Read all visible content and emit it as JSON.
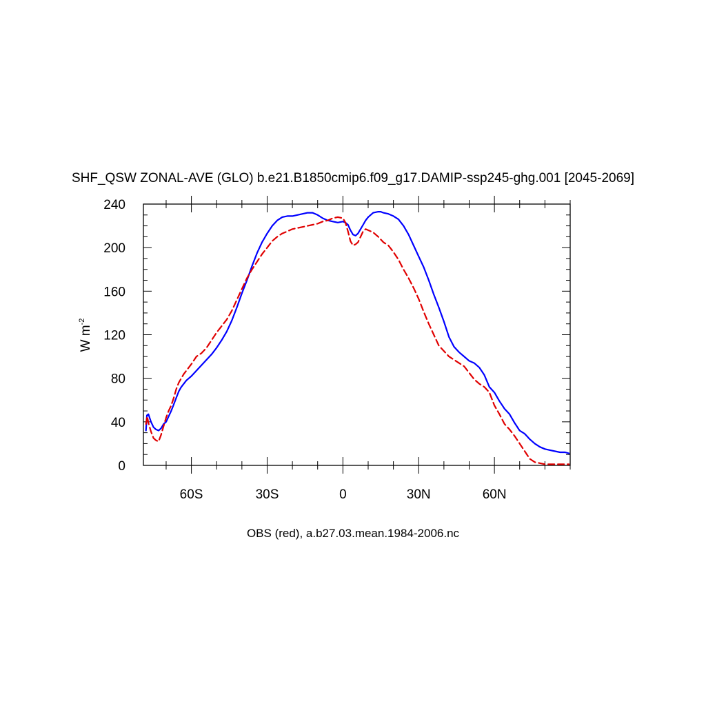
{
  "chart_data": {
    "type": "line",
    "title": "SHF_QSW ZONAL-AVE (GLO) b.e21.B1850cmip6.f09_g17.DAMIP-ssp245-ghg.001 [2045-2069]",
    "ylabel_main": "W m",
    "ylabel_exponent": "-2",
    "caption": "OBS (red), a.b27.03.mean.1984-2006.nc",
    "xlim": [
      -79,
      90
    ],
    "ylim": [
      0,
      240
    ],
    "grid": false,
    "x_ticks": [
      {
        "value": -60,
        "label": "60S"
      },
      {
        "value": -30,
        "label": "30S"
      },
      {
        "value": 0,
        "label": "0"
      },
      {
        "value": 30,
        "label": "30N"
      },
      {
        "value": 60,
        "label": "60N"
      }
    ],
    "y_ticks": [
      {
        "value": 0,
        "label": "0"
      },
      {
        "value": 40,
        "label": "40"
      },
      {
        "value": 80,
        "label": "80"
      },
      {
        "value": 120,
        "label": "120"
      },
      {
        "value": 160,
        "label": "160"
      },
      {
        "value": 200,
        "label": "200"
      },
      {
        "value": 240,
        "label": "240"
      }
    ],
    "series": [
      {
        "color": "#0000ff",
        "style": "solid",
        "x": [
          -78,
          -77.6,
          -77,
          -76,
          -75,
          -74,
          -73,
          -72,
          -71,
          -70,
          -69,
          -68,
          -67,
          -66,
          -65,
          -64,
          -63,
          -62,
          -61,
          -60,
          -58,
          -56,
          -54,
          -52,
          -50,
          -48,
          -46,
          -44,
          -42,
          -40,
          -38,
          -36,
          -34,
          -32,
          -30,
          -28,
          -26,
          -24,
          -22,
          -20,
          -18,
          -16,
          -14,
          -12,
          -10,
          -8,
          -6,
          -4,
          -2,
          0,
          1,
          2,
          3,
          4,
          5,
          6,
          7,
          8,
          9,
          10,
          12,
          14,
          15,
          16,
          18,
          20,
          22,
          24,
          26,
          28,
          30,
          32,
          34,
          36,
          38,
          40,
          42,
          44,
          46,
          48,
          50,
          52,
          54,
          56,
          58,
          60,
          62,
          64,
          66,
          68,
          70,
          72,
          74,
          76,
          78,
          80,
          82,
          84,
          86,
          88,
          89.5
        ],
        "values": [
          32,
          46,
          47,
          40,
          35,
          33,
          32,
          34,
          38,
          40,
          45,
          50,
          56,
          62,
          68,
          72,
          75,
          78,
          80,
          82,
          87,
          92,
          97,
          102,
          108,
          115,
          123,
          133,
          145,
          158,
          170,
          183,
          195,
          205,
          213,
          220,
          225,
          228,
          229,
          229,
          230,
          231,
          232,
          232,
          230,
          227,
          225,
          224,
          223,
          224,
          223,
          221,
          216,
          212,
          211,
          213,
          217,
          221,
          225,
          228,
          232,
          233,
          233,
          232,
          231,
          229,
          226,
          220,
          212,
          202,
          192,
          182,
          170,
          157,
          145,
          132,
          118,
          109,
          104,
          100,
          96,
          94,
          90,
          83,
          72,
          67,
          59,
          52,
          47,
          39,
          32,
          29,
          24,
          20,
          17,
          15,
          14,
          13,
          12,
          12,
          11
        ]
      },
      {
        "color": "#e00000",
        "style": "dashed",
        "x": [
          -78,
          -77.5,
          -77,
          -76,
          -75,
          -74,
          -73,
          -72,
          -71,
          -70,
          -69,
          -68,
          -67,
          -66,
          -65,
          -64,
          -63,
          -62,
          -60,
          -58,
          -56,
          -54,
          -52,
          -50,
          -48,
          -46,
          -44,
          -42,
          -40,
          -38,
          -36,
          -34,
          -32,
          -30,
          -28,
          -26,
          -24,
          -22,
          -20,
          -18,
          -16,
          -14,
          -12,
          -10,
          -8,
          -6,
          -4,
          -2,
          0,
          1,
          2,
          3,
          4,
          5,
          6,
          7,
          8,
          9,
          10,
          12,
          14,
          16,
          18,
          20,
          22,
          24,
          26,
          28,
          30,
          32,
          34,
          36,
          38,
          40,
          42,
          44,
          46,
          48,
          50,
          52,
          54,
          56,
          58,
          60,
          62,
          64,
          66,
          68,
          70,
          72,
          74,
          76,
          78,
          80,
          81,
          82,
          84,
          86,
          88,
          89.5
        ],
        "values": [
          38,
          45,
          39,
          31,
          25,
          23,
          22,
          28,
          36,
          44,
          50,
          55,
          62,
          70,
          76,
          80,
          84,
          87,
          93,
          100,
          103,
          108,
          115,
          122,
          128,
          134,
          142,
          152,
          162,
          172,
          180,
          187,
          194,
          200,
          206,
          210,
          213,
          215,
          217,
          218,
          219,
          220,
          221,
          222,
          224,
          225,
          227,
          228,
          227,
          223,
          215,
          206,
          202,
          203,
          205,
          210,
          215,
          217,
          216,
          214,
          210,
          205,
          202,
          196,
          189,
          180,
          172,
          163,
          153,
          141,
          130,
          120,
          110,
          105,
          100,
          97,
          94,
          91,
          85,
          79,
          75,
          72,
          67,
          55,
          47,
          38,
          33,
          27,
          20,
          13,
          6,
          3,
          2,
          1,
          1,
          1,
          1,
          1,
          1,
          1
        ]
      }
    ]
  }
}
